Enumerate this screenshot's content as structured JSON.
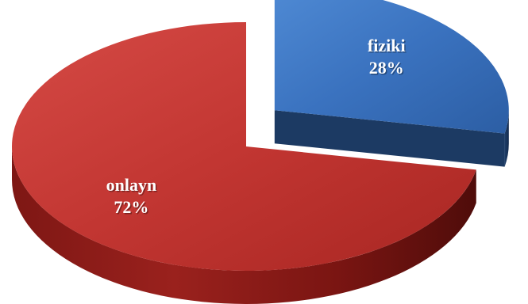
{
  "chart_data": {
    "type": "pie",
    "style": "3d-exploded",
    "slices": [
      {
        "label": "fiziki",
        "value": 28,
        "value_label": "28%",
        "color": "#3a72bf",
        "exploded": true
      },
      {
        "label": "onlayn",
        "value": 72,
        "value_label": "72%",
        "color": "#bf3330",
        "exploded": false
      }
    ],
    "title": "",
    "legend": "none"
  }
}
